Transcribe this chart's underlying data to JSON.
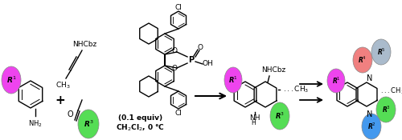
{
  "background_color": "#ffffff",
  "colors": {
    "magenta": "#ee44ee",
    "green": "#55dd55",
    "red_pink": "#f08080",
    "blue_lavender": "#aabbcc",
    "blue": "#4499ee",
    "black": "#000000"
  },
  "text": {
    "nhcbz": "NHCbz",
    "nh2": "NH$_2$",
    "ch3": "CH$_3$",
    "nh": "NH",
    "equiv": "(0.1 equiv)",
    "solvent": "CH$_2$Cl$_2$, 0 °C",
    "cl": "Cl",
    "oh": "OH",
    "o": "O",
    "p": "P",
    "n": "N",
    "h": "H",
    "r1": "R$^1$",
    "r2": "R$^2$",
    "r3": "R$^3$",
    "r4": "R$^4$",
    "r5": "R$^5$"
  }
}
